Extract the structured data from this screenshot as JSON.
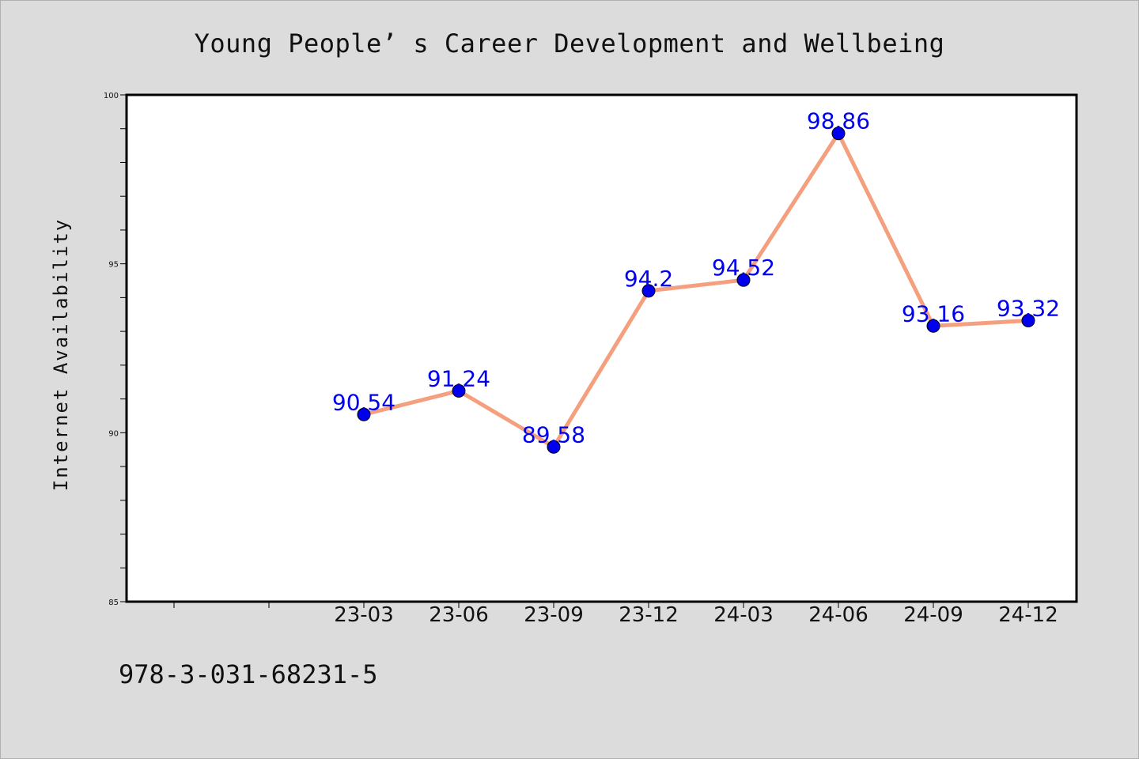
{
  "colors": {
    "background": "#dcdcdc",
    "plot_background": "#ffffff",
    "line": "#f4a07f",
    "marker": "#0000ee",
    "data_label": "#0000ee"
  },
  "footer_text": "978-3-031-68231-5",
  "chart_data": {
    "type": "line",
    "title": "Young People’ s Career Development and Wellbeing",
    "xlabel": "",
    "ylabel": "Internet Availability",
    "categories": [
      "23-03",
      "23-06",
      "23-09",
      "23-12",
      "24-03",
      "24-06",
      "24-09",
      "24-12"
    ],
    "series": [
      {
        "values": [
          90.54,
          91.24,
          89.58,
          94.2,
          94.52,
          98.86,
          93.16,
          93.32
        ],
        "labels": [
          "90.54",
          "91.24",
          "89.58",
          "94.2",
          "94.52",
          "98.86",
          "93.16",
          "93.32"
        ]
      }
    ],
    "ylim": [
      85,
      100
    ],
    "yticks": [
      "85",
      "90",
      "95",
      "100"
    ],
    "grid": false,
    "legend": "none"
  }
}
